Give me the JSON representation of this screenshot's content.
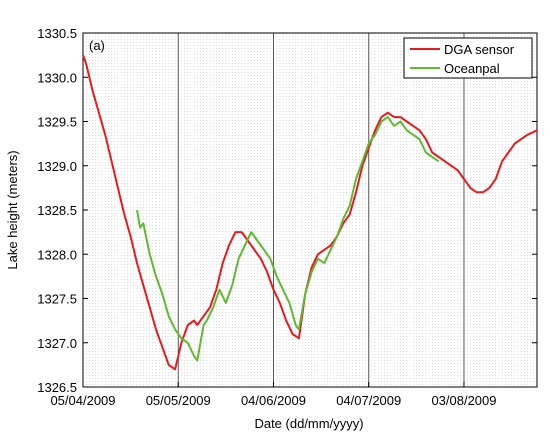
{
  "chart_data": {
    "type": "line",
    "panel_label": "(a)",
    "title": "",
    "xlabel": "Date (dd/mm/yyyy)",
    "ylabel": "Lake height (meters)",
    "xlim": [
      "2009-04-05",
      "2009-08-26"
    ],
    "ylim": [
      1326.5,
      1330.5
    ],
    "x_ticks": [
      "2009-04-05",
      "2009-05-05",
      "2009-06-04",
      "2009-07-04",
      "2009-08-03"
    ],
    "x_tick_labels": [
      "05/04/2009",
      "05/05/2009",
      "04/06/2009",
      "04/07/2009",
      "03/08/2009"
    ],
    "y_ticks": [
      1326.5,
      1327.0,
      1327.5,
      1328.0,
      1328.5,
      1329.0,
      1329.5,
      1330.0,
      1330.5
    ],
    "y_tick_labels": [
      "1326.5",
      "1327.0",
      "1327.5",
      "1328.0",
      "1328.5",
      "1329.0",
      "1329.5",
      "1330.0",
      "1330.5"
    ],
    "grid": "dotted vertical daily lines, solid vertical lines at labeled dates",
    "legend_position": "top-right",
    "series": [
      {
        "name": "DGA sensor",
        "color": "#e8191c",
        "x": [
          "2009-04-05",
          "2009-04-06",
          "2009-04-08",
          "2009-04-10",
          "2009-04-12",
          "2009-04-14",
          "2009-04-16",
          "2009-04-18",
          "2009-04-20",
          "2009-04-22",
          "2009-04-24",
          "2009-04-26",
          "2009-04-28",
          "2009-04-30",
          "2009-05-02",
          "2009-05-04",
          "2009-05-06",
          "2009-05-08",
          "2009-05-10",
          "2009-05-11",
          "2009-05-13",
          "2009-05-15",
          "2009-05-17",
          "2009-05-19",
          "2009-05-21",
          "2009-05-23",
          "2009-05-25",
          "2009-05-27",
          "2009-05-29",
          "2009-05-31",
          "2009-06-02",
          "2009-06-04",
          "2009-06-06",
          "2009-06-08",
          "2009-06-10",
          "2009-06-12",
          "2009-06-14",
          "2009-06-16",
          "2009-06-18",
          "2009-06-20",
          "2009-06-22",
          "2009-06-24",
          "2009-06-26",
          "2009-06-28",
          "2009-06-30",
          "2009-07-02",
          "2009-07-04",
          "2009-07-06",
          "2009-07-08",
          "2009-07-10",
          "2009-07-12",
          "2009-07-14",
          "2009-07-16",
          "2009-07-18",
          "2009-07-20",
          "2009-07-22",
          "2009-07-24",
          "2009-07-26",
          "2009-07-28",
          "2009-07-30",
          "2009-08-01",
          "2009-08-03",
          "2009-08-05",
          "2009-08-07",
          "2009-08-09",
          "2009-08-11",
          "2009-08-13",
          "2009-08-15",
          "2009-08-17",
          "2009-08-19",
          "2009-08-21",
          "2009-08-23",
          "2009-08-26"
        ],
        "values": [
          1330.25,
          1330.15,
          1329.85,
          1329.6,
          1329.35,
          1329.05,
          1328.75,
          1328.45,
          1328.2,
          1327.9,
          1327.65,
          1327.4,
          1327.15,
          1326.95,
          1326.75,
          1326.7,
          1327.0,
          1327.2,
          1327.25,
          1327.2,
          1327.3,
          1327.4,
          1327.6,
          1327.9,
          1328.1,
          1328.25,
          1328.25,
          1328.15,
          1328.05,
          1327.95,
          1327.8,
          1327.6,
          1327.45,
          1327.25,
          1327.1,
          1327.05,
          1327.55,
          1327.85,
          1328.0,
          1328.05,
          1328.1,
          1328.2,
          1328.35,
          1328.45,
          1328.7,
          1329.0,
          1329.2,
          1329.4,
          1329.55,
          1329.6,
          1329.55,
          1329.55,
          1329.5,
          1329.45,
          1329.4,
          1329.3,
          1329.15,
          1329.1,
          1329.05,
          1329.0,
          1328.95,
          1328.85,
          1328.75,
          1328.7,
          1328.7,
          1328.75,
          1328.85,
          1329.05,
          1329.15,
          1329.25,
          1329.3,
          1329.35,
          1329.4
        ]
      },
      {
        "name": "Oceanpal",
        "color": "#5dba2f",
        "x": [
          "2009-04-22",
          "2009-04-23",
          "2009-04-24",
          "2009-04-26",
          "2009-04-28",
          "2009-04-30",
          "2009-05-02",
          "2009-05-04",
          "2009-05-06",
          "2009-05-08",
          "2009-05-10",
          "2009-05-11",
          "2009-05-13",
          "2009-05-14",
          "2009-05-16",
          "2009-05-18",
          "2009-05-20",
          "2009-05-22",
          "2009-05-24",
          "2009-05-26",
          "2009-05-28",
          "2009-05-30",
          "2009-06-01",
          "2009-06-03",
          "2009-06-05",
          "2009-06-07",
          "2009-06-09",
          "2009-06-11",
          "2009-06-12",
          "2009-06-14",
          "2009-06-16",
          "2009-06-18",
          "2009-06-20",
          "2009-06-22",
          "2009-06-24",
          "2009-06-26",
          "2009-06-28",
          "2009-06-30",
          "2009-07-02",
          "2009-07-04",
          "2009-07-06",
          "2009-07-08",
          "2009-07-10",
          "2009-07-12",
          "2009-07-14",
          "2009-07-16",
          "2009-07-18",
          "2009-07-20",
          "2009-07-22",
          "2009-07-24",
          "2009-07-26"
        ],
        "values": [
          1328.5,
          1328.3,
          1328.35,
          1328.0,
          1327.75,
          1327.55,
          1327.3,
          1327.15,
          1327.05,
          1327.0,
          1326.85,
          1326.8,
          1327.2,
          1327.25,
          1327.4,
          1327.6,
          1327.45,
          1327.65,
          1327.95,
          1328.1,
          1328.25,
          1328.15,
          1328.05,
          1327.95,
          1327.75,
          1327.6,
          1327.45,
          1327.2,
          1327.15,
          1327.55,
          1327.8,
          1327.95,
          1327.9,
          1328.05,
          1328.2,
          1328.4,
          1328.55,
          1328.85,
          1329.05,
          1329.25,
          1329.35,
          1329.5,
          1329.55,
          1329.45,
          1329.5,
          1329.4,
          1329.35,
          1329.3,
          1329.15,
          1329.1,
          1329.05
        ]
      }
    ]
  }
}
